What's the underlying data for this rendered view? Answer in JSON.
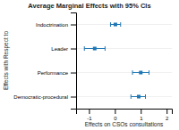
{
  "chart_data": {
    "type": "dot",
    "orientation": "horizontal",
    "title": "Average Marginal Effects with 95% CIs",
    "xlabel": "Effects on CSOs consultations",
    "ylabel": "Effects with Respect to",
    "categories": [
      "Indoctrination",
      "Leader",
      "Performance",
      "Democratic-procedural"
    ],
    "values": [
      0.02,
      -0.78,
      1.0,
      0.92
    ],
    "ci_lower": [
      -0.17,
      -1.18,
      0.68,
      0.62
    ],
    "ci_upper": [
      0.22,
      -0.38,
      1.32,
      1.18
    ],
    "xlim": [
      -1.5,
      2.2
    ],
    "xticks": [
      -1,
      0,
      1,
      2
    ],
    "grid": true
  }
}
